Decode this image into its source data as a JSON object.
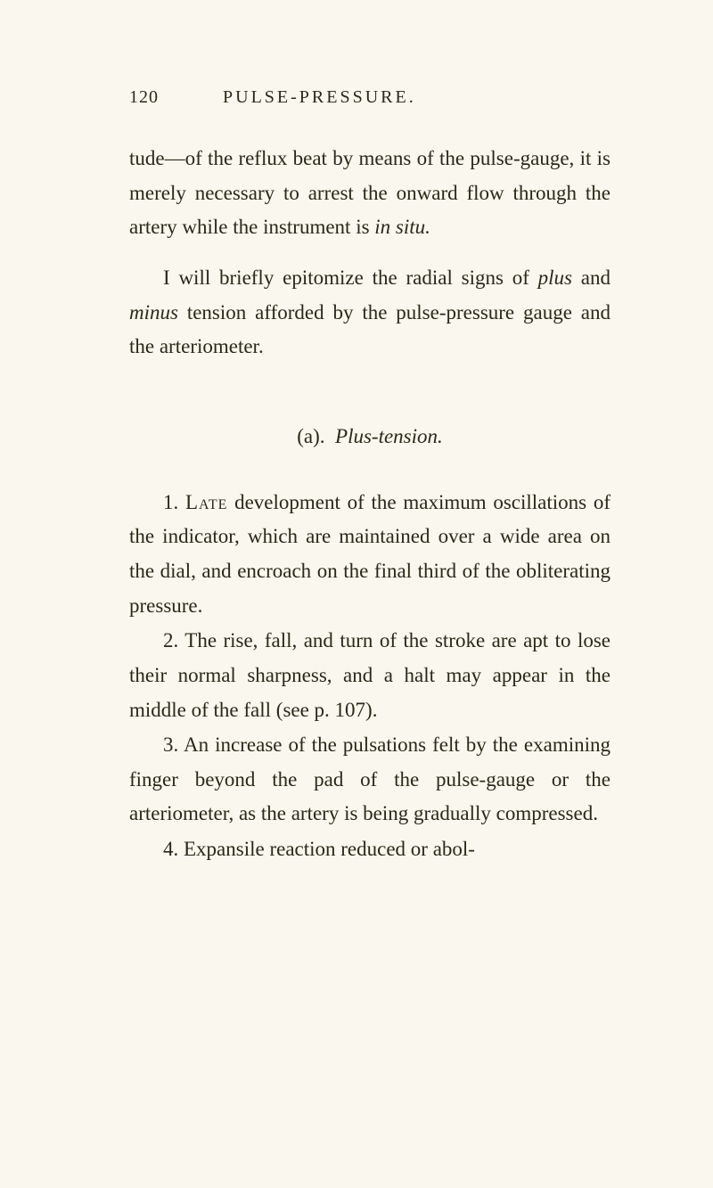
{
  "page": {
    "number": "120",
    "header": "PULSE-PRESSURE.",
    "background_color": "#faf8ee",
    "text_color": "#2a2818",
    "body_fontsize": 23,
    "header_fontsize": 20,
    "line_height": 1.68
  },
  "para1": {
    "t1": "tude—of the reflux beat by means of the pulse-gauge, it is merely necessary to arrest the onward flow through the artery while the instrument is ",
    "i1": "in situ.",
    "t2": ""
  },
  "para2": {
    "t1": "I will briefly epitomize the radial signs of ",
    "i1": "plus",
    "t2": " and ",
    "i2": "minus",
    "t3": " tension afforded by the pulse-pressure gauge and the arte­riometer."
  },
  "section": {
    "label": "(a).",
    "title": "Plus-tension."
  },
  "item1": {
    "num": "1.",
    "lead": "Late",
    "text": " development of the maximum oscillations of the indicator, which are maintained over a wide area on the dial, and encroach on the final third of the obliterating pressure."
  },
  "item2": {
    "num": "2.",
    "text": "The rise, fall, and turn of the stroke are apt to lose their normal sharpness, and a halt may appear in the middle of the fall (see p. 107)."
  },
  "item3": {
    "num": "3.",
    "text": "An increase of the pulsations felt by the examining finger beyond the pad of the pulse-gauge or the arteriometer, as the artery is being gradually compressed."
  },
  "item4": {
    "num": "4.",
    "text": "Expansile reaction reduced or abol-"
  }
}
